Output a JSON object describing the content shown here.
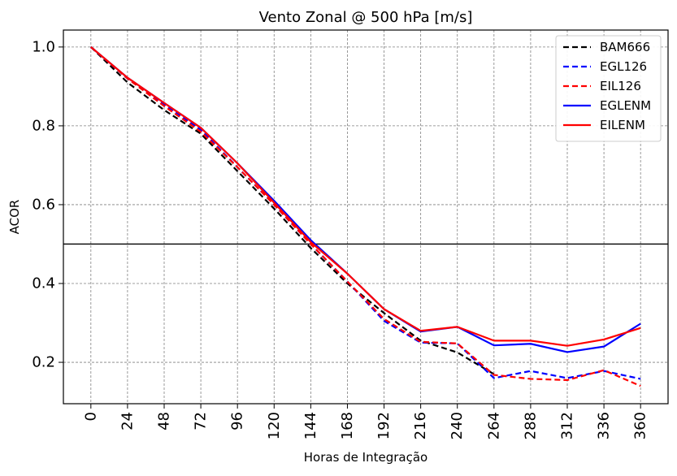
{
  "chart_data": {
    "type": "line",
    "title": "Vento Zonal @ 500 hPa [m/s]",
    "xlabel": "Horas de Integração",
    "ylabel": "ACOR",
    "x": [
      0,
      24,
      48,
      72,
      96,
      120,
      144,
      168,
      192,
      216,
      240,
      264,
      288,
      312,
      336,
      360
    ],
    "x_tick_labels": [
      "0",
      "24",
      "48",
      "72",
      "96",
      "120",
      "144",
      "168",
      "192",
      "216",
      "240",
      "264",
      "288",
      "312",
      "336",
      "360"
    ],
    "y_tick_values": [
      0.2,
      0.4,
      0.6,
      0.8,
      1.0
    ],
    "y_tick_labels": [
      "0.2",
      "0.4",
      "0.6",
      "0.8",
      "1.0"
    ],
    "xlim": [
      -18,
      378
    ],
    "ylim": [
      0.095,
      1.043
    ],
    "grid": true,
    "reference_line": {
      "y": 0.5,
      "color": "#000000"
    },
    "legend_position": "top-right",
    "series": [
      {
        "name": "BAM666",
        "color": "#000000",
        "style": "dashed",
        "values": [
          1.0,
          0.91,
          0.84,
          0.78,
          0.685,
          0.59,
          0.49,
          0.4,
          0.325,
          0.255,
          0.225,
          0.17,
          null,
          null,
          null,
          null
        ]
      },
      {
        "name": "EGL126",
        "color": "#0000ff",
        "style": "dashed",
        "values": [
          1.0,
          0.92,
          0.855,
          0.79,
          0.695,
          0.6,
          0.5,
          0.405,
          0.305,
          0.25,
          0.248,
          0.16,
          0.178,
          0.16,
          0.178,
          0.158
        ]
      },
      {
        "name": "EIL126",
        "color": "#ff0000",
        "style": "dashed",
        "values": [
          1.0,
          0.92,
          0.85,
          0.785,
          0.695,
          0.6,
          0.5,
          0.405,
          0.31,
          0.252,
          0.248,
          0.168,
          0.158,
          0.155,
          0.18,
          0.14
        ]
      },
      {
        "name": "EGLENM",
        "color": "#0000ff",
        "style": "solid",
        "values": [
          1.0,
          0.922,
          0.858,
          0.795,
          0.705,
          0.61,
          0.51,
          0.425,
          0.335,
          0.278,
          0.29,
          0.243,
          0.247,
          0.226,
          0.24,
          0.298
        ]
      },
      {
        "name": "EILENM",
        "color": "#ff0000",
        "style": "solid",
        "values": [
          1.0,
          0.922,
          0.858,
          0.795,
          0.705,
          0.605,
          0.505,
          0.425,
          0.335,
          0.28,
          0.29,
          0.255,
          0.255,
          0.242,
          0.258,
          0.287
        ]
      }
    ]
  }
}
